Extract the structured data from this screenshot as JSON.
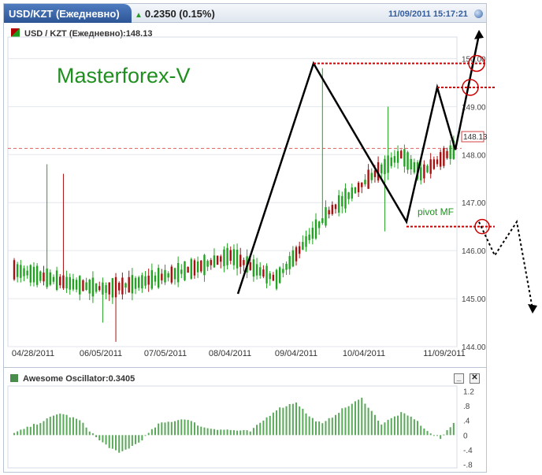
{
  "header": {
    "tab_title": "USD/KZT (Ежедневно)",
    "change": "0.2350 (0.15%)",
    "timestamp": "11/09/2011 15:17:21"
  },
  "chart_head": "USD / KZT (Ежедневно):148.13",
  "watermark": "Masterforex-V",
  "pivot_label": "pivot MF",
  "last_price_label": "148.13",
  "osc_head": "Awesome Oscillator:0.3405",
  "colors": {
    "up": "#22a322",
    "down": "#a81010",
    "pattern": "#000000",
    "pivot": "#cc0000",
    "watermark": "#1f8f1f"
  },
  "chart_data": [
    {
      "type": "candlestick",
      "title": "USD / KZT (Ежедневно):148.13",
      "x_ticks": [
        "04/28/2011",
        "06/05/2011",
        "07/05/2011",
        "08/04/2011",
        "09/04/2011",
        "10/04/2011",
        "11/09/2011"
      ],
      "y_ticks": [
        144.0,
        145.0,
        146.0,
        147.0,
        148.0,
        149.0,
        150.0
      ],
      "ylim": [
        144,
        150.4
      ],
      "last_price": 148.13,
      "pattern_zigzag": [
        145.1,
        149.9,
        146.6,
        149.4,
        148.1,
        150.5
      ],
      "pivot_level": 146.5,
      "levels": [
        149.9,
        149.4
      ]
    },
    {
      "type": "bar",
      "title": "Awesome Oscillator:0.3405",
      "y_ticks": [
        "1.2",
        ".8",
        ".4",
        "0",
        "-.4",
        "-.8"
      ],
      "y_tick_values": [
        1.2,
        0.8,
        0.4,
        0,
        -0.4,
        -0.8
      ],
      "ylim": [
        -0.85,
        1.25
      ]
    }
  ]
}
